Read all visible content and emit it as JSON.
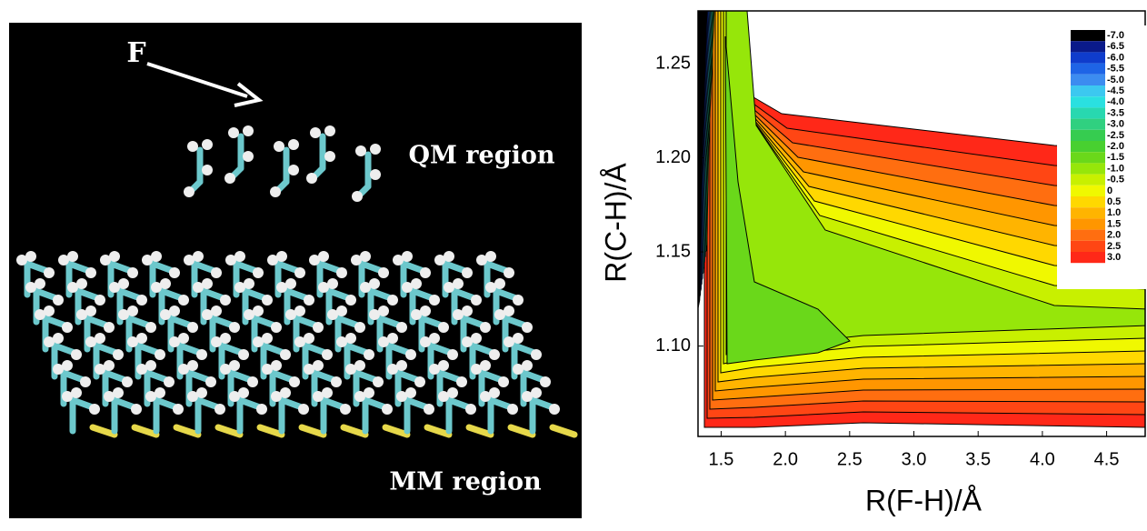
{
  "panel_a": {
    "atom_label": "F",
    "qm_label": "QM region",
    "mm_label": "MM region"
  },
  "chart_data": {
    "type": "contour",
    "x_label": "R(F-H)/Å",
    "y_label": "R(C-H)/Å",
    "xlim": [
      1.32,
      4.8
    ],
    "xticks": [
      1.5,
      {
        "value": 2,
        "label": "2.0"
      },
      2.5,
      {
        "value": 3,
        "label": "3.0"
      },
      3.5,
      {
        "value": 4,
        "label": "4.0"
      },
      4.5
    ],
    "ylim": [
      1.052,
      1.278
    ],
    "yticks": [
      {
        "value": 1.1,
        "label": "1.10"
      },
      1.15,
      {
        "value": 1.2,
        "label": "1.20"
      },
      1.25
    ],
    "levels": [
      {
        "value": -7,
        "label": "-7.0"
      },
      -6.5,
      {
        "value": -6,
        "label": "-6.0"
      },
      -5.5,
      {
        "value": -5,
        "label": "-5.0"
      },
      -4.5,
      {
        "value": -4,
        "label": "-4.0"
      },
      -3.5,
      {
        "value": -3,
        "label": "-3.0"
      },
      -2.5,
      {
        "value": -2,
        "label": "-2.0"
      },
      -1.5,
      {
        "value": -1,
        "label": "-1.0"
      },
      -0.5,
      0,
      0.5,
      {
        "value": 1,
        "label": "1.0"
      },
      1.5,
      {
        "value": 2,
        "label": "2.0"
      },
      2.5,
      {
        "value": 3,
        "label": "3.0"
      }
    ],
    "colors": [
      "#000000",
      "#0a1a8a",
      "#0f3ccc",
      "#1e64e6",
      "#3c8cf0",
      "#3cc8f0",
      "#2ae0e0",
      "#28d8b0",
      "#30d080",
      "#36cc50",
      "#48d030",
      "#6ad81a",
      "#96e60a",
      "#c8f000",
      "#f0f800",
      "#ffd800",
      "#ffb400",
      "#ff9600",
      "#ff6e10",
      "#ff4614",
      "#ff2818"
    ]
  }
}
